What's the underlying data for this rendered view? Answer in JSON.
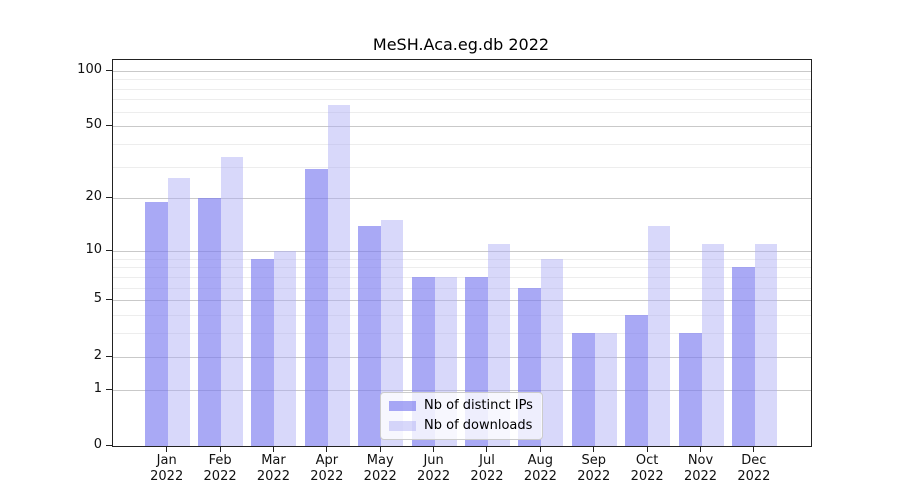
{
  "chart_data": {
    "type": "bar",
    "title": "MeSH.Aca.eg.db 2022",
    "categories": [
      "Jan 2022",
      "Feb 2022",
      "Mar 2022",
      "Apr 2022",
      "May 2022",
      "Jun 2022",
      "Jul 2022",
      "Aug 2022",
      "Sep 2022",
      "Oct 2022",
      "Nov 2022",
      "Dec 2022"
    ],
    "series": [
      {
        "name": "Nb of distinct IPs",
        "values": [
          19,
          20,
          9,
          29,
          14,
          7,
          7,
          6,
          3,
          4,
          3,
          8
        ],
        "color": "rgba(120,120,240,0.64)"
      },
      {
        "name": "Nb of downloads",
        "values": [
          26,
          34,
          10,
          65,
          15,
          7,
          11,
          9,
          3,
          14,
          11,
          11
        ],
        "color": "rgba(170,170,245,0.46)"
      }
    ],
    "yscale": "log1p",
    "ylim": [
      0,
      114
    ],
    "yticks_major": [
      0,
      1,
      2,
      5,
      10,
      20,
      50,
      100
    ],
    "yticks_minor": [
      3,
      4,
      6,
      7,
      8,
      9,
      30,
      40,
      60,
      70,
      80,
      90
    ],
    "grid": "on",
    "legend_position": "lower-center",
    "xlabel": "",
    "ylabel": ""
  }
}
